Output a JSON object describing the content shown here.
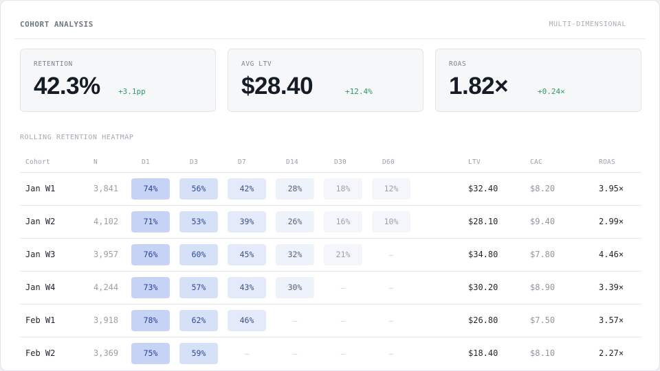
{
  "header": {
    "title": "COHORT ANALYSIS",
    "tag": "MULTI-DIMENSIONAL"
  },
  "kpis": [
    {
      "label": "RETENTION",
      "value": "42.3%",
      "delta": "+3.1pp"
    },
    {
      "label": "AVG LTV",
      "value": "$28.40",
      "delta": "+12.4%"
    },
    {
      "label": "ROAS",
      "value": "1.82×",
      "delta": "+0.24×"
    }
  ],
  "section_title": "ROLLING RETENTION HEATMAP",
  "columns": [
    "Cohort",
    "N",
    "D1",
    "D3",
    "D7",
    "D14",
    "D30",
    "D60",
    "LTV",
    "CAC",
    "ROAS"
  ],
  "rows": [
    {
      "cohort": "Jan W1",
      "n": "3,841",
      "retention": [
        74,
        56,
        42,
        28,
        18,
        12
      ],
      "ltv": "$32.40",
      "cac": "$8.20",
      "roas": "3.95×"
    },
    {
      "cohort": "Jan W2",
      "n": "4,102",
      "retention": [
        71,
        53,
        39,
        26,
        16,
        10
      ],
      "ltv": "$28.10",
      "cac": "$9.40",
      "roas": "2.99×"
    },
    {
      "cohort": "Jan W3",
      "n": "3,957",
      "retention": [
        76,
        60,
        45,
        32,
        21,
        null
      ],
      "ltv": "$34.80",
      "cac": "$7.80",
      "roas": "4.46×"
    },
    {
      "cohort": "Jan W4",
      "n": "4,244",
      "retention": [
        73,
        57,
        43,
        30,
        null,
        null
      ],
      "ltv": "$30.20",
      "cac": "$8.90",
      "roas": "3.39×"
    },
    {
      "cohort": "Feb W1",
      "n": "3,918",
      "retention": [
        78,
        62,
        46,
        null,
        null,
        null
      ],
      "ltv": "$26.80",
      "cac": "$7.50",
      "roas": "3.57×"
    },
    {
      "cohort": "Feb W2",
      "n": "3,369",
      "retention": [
        75,
        59,
        null,
        null,
        null,
        null
      ],
      "ltv": "$18.40",
      "cac": "$8.10",
      "roas": "2.27×"
    }
  ],
  "empty_symbol": "—",
  "colors": {
    "heat_hi_bg": "#c6d3f4",
    "heat_hi_fg": "#26439b",
    "heat_mid_bg": "#d6e0f7",
    "heat_mid_fg": "#2e4a99",
    "heat_lo_bg": "#e4eafa",
    "heat_lo_fg": "#3b4f8c",
    "heat_faint_bg": "#eef2fb",
    "heat_faint_fg": "#55607a",
    "heat_min_bg": "#f4f6fb",
    "heat_min_fg": "#9aa1ad",
    "delta_positive": "#2e9a62"
  }
}
